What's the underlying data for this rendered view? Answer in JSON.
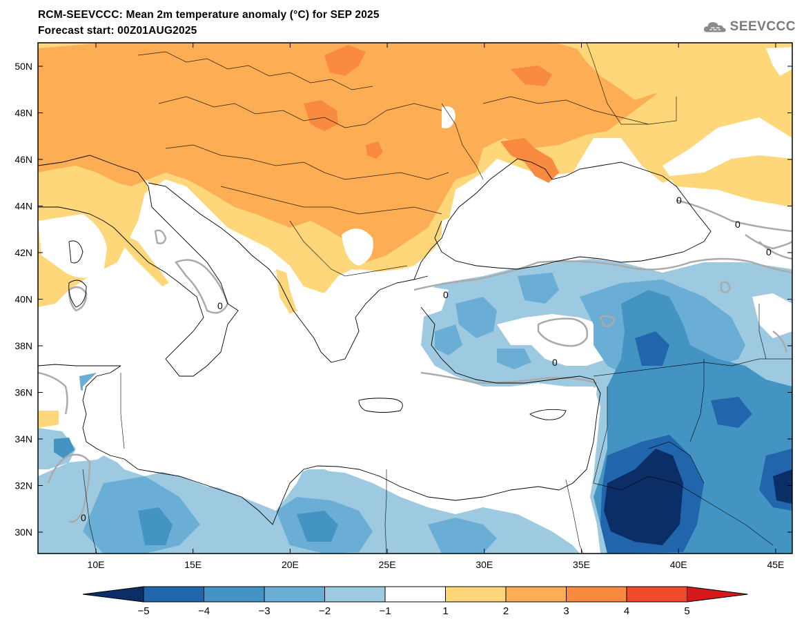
{
  "header": {
    "title": "RCM-SEEVCCC: Mean 2m temperature anomaly (°C) for SEP 2025",
    "subtitle": "Forecast start: 00Z01AUG2025",
    "logo_text": "SEEVCCC"
  },
  "map": {
    "lat_labels": [
      "50N",
      "48N",
      "46N",
      "44N",
      "42N",
      "40N",
      "38N",
      "36N",
      "34N",
      "32N",
      "30N"
    ],
    "lon_labels": [
      "10E",
      "15E",
      "20E",
      "25E",
      "30E",
      "35E",
      "40E",
      "45E"
    ],
    "contour_labels": [
      "0",
      "0",
      "0",
      "0",
      "0",
      "0",
      "0"
    ]
  },
  "colorbar": {
    "ticks": [
      "−5",
      "−4",
      "−3",
      "−2",
      "−1",
      "1",
      "2",
      "3",
      "4",
      "5"
    ],
    "colors": [
      "#0b2e66",
      "#2166ac",
      "#4393c3",
      "#6aaed6",
      "#9ecae1",
      "#ffffff",
      "#fdd77a",
      "#fdae55",
      "#f88b40",
      "#ef4a2a",
      "#d7191c"
    ]
  },
  "colors": {
    "warm_light": "#fdd77a",
    "warm_mid": "#fdae55",
    "warm_strong": "#f88b40",
    "warm_hot": "#ef4a2a",
    "cool_light": "#9ecae1",
    "cool_mid": "#6aaed6",
    "cool_strong": "#4393c3",
    "cool_deep": "#2166ac",
    "cool_darkest": "#0b2e66",
    "contour": "#aaaaaa"
  }
}
